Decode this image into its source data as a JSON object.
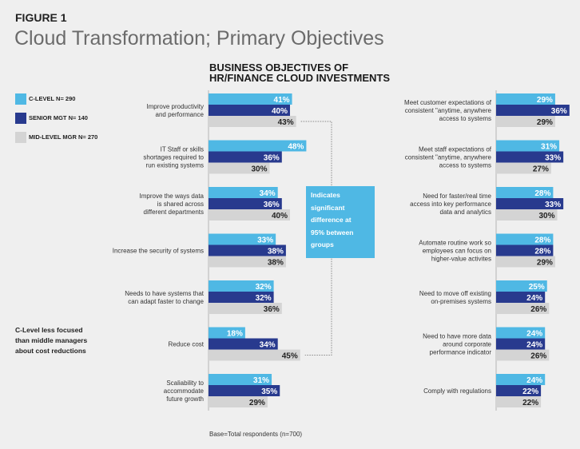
{
  "figure_label": "FIGURE 1",
  "title": "Cloud Transformation; Primary Objectives",
  "subtitle_lines": [
    "BUSINESS OBJECTIVES OF",
    "HR/FINANCE CLOUD INVESTMENTS"
  ],
  "legend": [
    {
      "label": "C-LEVEL N= 290",
      "color": "#4fb8e4"
    },
    {
      "label": "SENIOR MGT N= 140",
      "color": "#283a8e"
    },
    {
      "label": "MID-LEVEL MGR N= 270",
      "color": "#d4d4d4"
    }
  ],
  "note_lines": [
    "C-Level less focused",
    "than middle managers",
    "about cost reductions"
  ],
  "callout_lines": [
    "Indicates",
    "significant",
    "difference at",
    "95% between",
    "groups"
  ],
  "base_text": "Base=Total respondents (n=700)",
  "chart_data": {
    "type": "bar",
    "orientation": "horizontal",
    "title": "BUSINESS OBJECTIVES OF HR/FINANCE CLOUD INVESTMENTS",
    "unit": "%",
    "series_names": [
      "C-LEVEL N= 290",
      "SENIOR MGT N= 140",
      "MID-LEVEL MGR N= 270"
    ],
    "panels": [
      {
        "position": "left",
        "categories": [
          {
            "lines": [
              "Improve productivity",
              "and performance"
            ],
            "values": [
              41,
              40,
              43
            ]
          },
          {
            "lines": [
              "IT Staff or skills",
              "shortages required to",
              "run existing systems"
            ],
            "values": [
              48,
              36,
              30
            ]
          },
          {
            "lines": [
              "Improve the ways data",
              "is shared across",
              "different departments"
            ],
            "values": [
              34,
              36,
              40
            ]
          },
          {
            "lines": [
              "Increase the security of systems"
            ],
            "values": [
              33,
              38,
              38
            ]
          },
          {
            "lines": [
              "Needs to have systems that",
              "can adapt faster to change"
            ],
            "values": [
              32,
              32,
              36
            ]
          },
          {
            "lines": [
              "Reduce cost"
            ],
            "values": [
              18,
              34,
              45
            ]
          },
          {
            "lines": [
              "Scaliability to",
              "accommodate",
              "future growth"
            ],
            "values": [
              31,
              35,
              29
            ]
          }
        ]
      },
      {
        "position": "right",
        "categories": [
          {
            "lines": [
              "Meet customer expectations of",
              "consistent \"anytime, anywhere",
              "access to systems"
            ],
            "values": [
              29,
              36,
              29
            ]
          },
          {
            "lines": [
              "Meet staff expectations of",
              "consistent \"anytime, anywhere",
              "access to systems"
            ],
            "values": [
              31,
              33,
              27
            ]
          },
          {
            "lines": [
              "Need for faster/real time",
              "access into key performance",
              "data and analytics"
            ],
            "values": [
              28,
              33,
              30
            ]
          },
          {
            "lines": [
              "Automate routine work so",
              "employees can focus on",
              "higher-value activites"
            ],
            "values": [
              28,
              28,
              29
            ]
          },
          {
            "lines": [
              "Need to move off existing",
              "on-premises systems"
            ],
            "values": [
              25,
              24,
              26
            ]
          },
          {
            "lines": [
              "Need to have more data",
              "around corporate",
              "performance indicator"
            ],
            "values": [
              24,
              24,
              26
            ]
          },
          {
            "lines": [
              "Comply with regulations"
            ],
            "values": [
              24,
              22,
              22
            ]
          }
        ]
      }
    ],
    "significance_links": [
      {
        "panel": "left",
        "from": {
          "category": 0,
          "series": 2
        },
        "to": {
          "category": 5,
          "series": 2
        }
      }
    ]
  }
}
